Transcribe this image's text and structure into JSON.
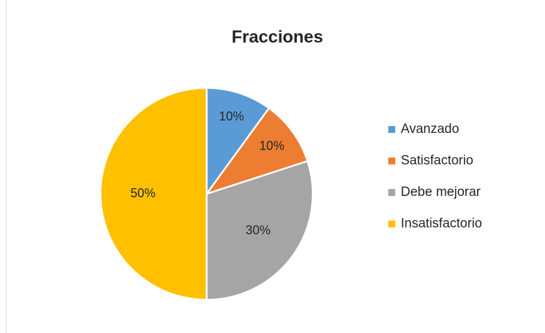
{
  "chart_data": {
    "type": "pie",
    "title": "Fracciones",
    "categories": [
      "Avanzado",
      "Satisfactorio",
      "Debe mejorar",
      "Insatisfactorio"
    ],
    "values": [
      10,
      10,
      30,
      50
    ],
    "value_labels": [
      "10%",
      "10%",
      "30%",
      "50%"
    ],
    "colors": [
      "#5b9bd5",
      "#ed7d31",
      "#a5a5a5",
      "#ffc000"
    ],
    "legend": "right"
  }
}
